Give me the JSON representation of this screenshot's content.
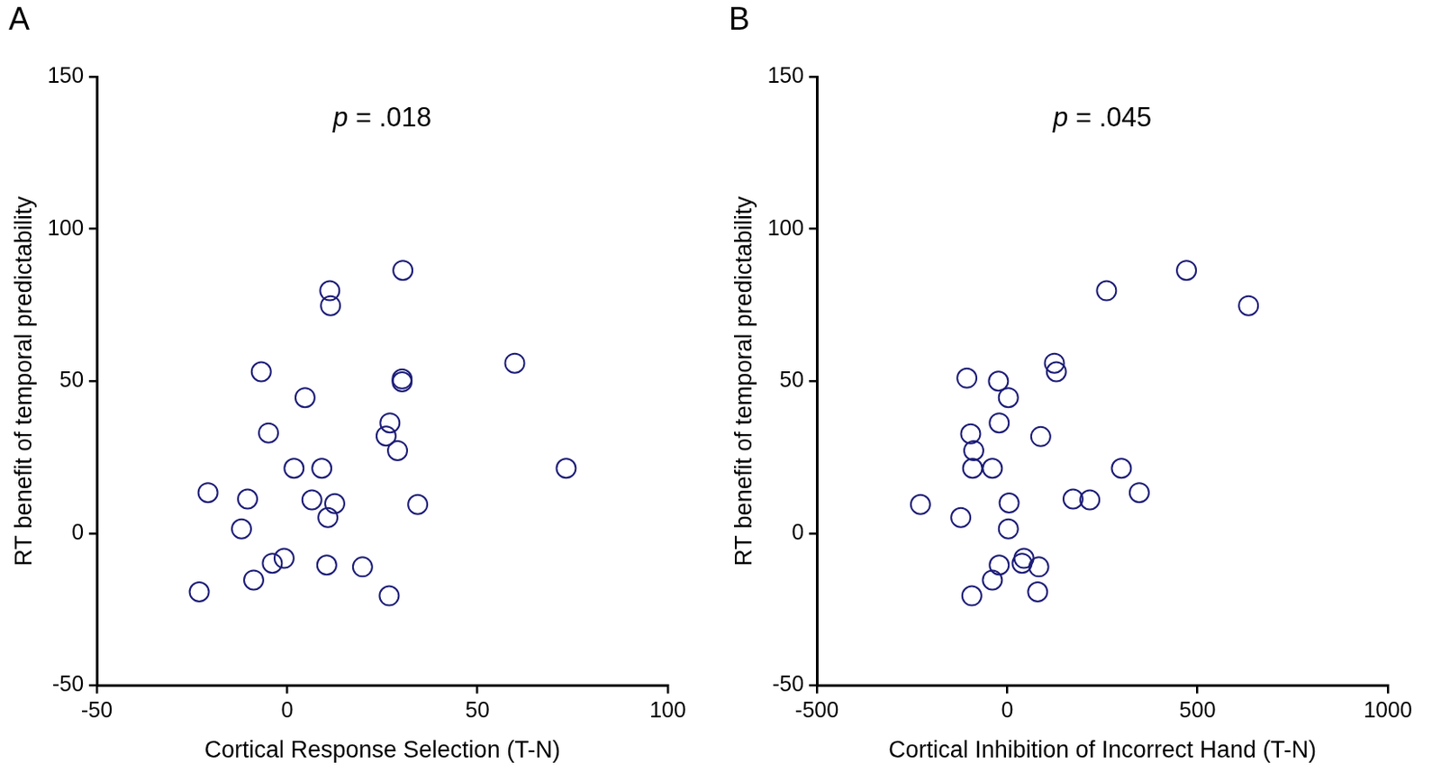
{
  "chart_data": [
    {
      "type": "scatter",
      "title": "A",
      "x_label": "Cortical Response Selection (T-N)",
      "y_label": "RT benefit of temporal predictability",
      "annotations": [
        {
          "text": "p = .018"
        }
      ],
      "x": [
        30.4,
        11.2,
        11.4,
        59.8,
        -6.8,
        30.2,
        30.2,
        4.7,
        27.0,
        -4.9,
        26.0,
        29.0,
        1.8,
        9.1,
        73.3,
        -20.8,
        -10.4,
        6.5,
        12.5,
        34.3,
        10.7,
        -12.0,
        -0.8,
        -3.9,
        10.4,
        19.8,
        -8.8,
        -23.1,
        26.8
      ],
      "values": [
        86.4,
        79.7,
        74.8,
        55.9,
        53.1,
        50.7,
        49.8,
        44.6,
        36.3,
        33.0,
        32.0,
        27.2,
        21.4,
        21.4,
        21.4,
        13.4,
        11.3,
        11.0,
        9.8,
        9.5,
        5.2,
        1.5,
        -8.2,
        -9.8,
        -10.4,
        -11.0,
        -15.3,
        -19.2,
        -20.5
      ],
      "color": "#1c1c78",
      "marker": "open_circle",
      "xlim": [
        -50,
        100
      ],
      "xticks": [
        -50,
        0,
        50,
        100
      ],
      "ylim": [
        -50,
        150
      ],
      "yticks": [
        -50,
        0,
        50,
        100,
        150
      ],
      "grid": false
    },
    {
      "type": "scatter",
      "title": "B",
      "x_label": "Cortical Inhibition of Incorrect Hand (T-N)",
      "y_label": "RT benefit of temporal predictability",
      "annotations": [
        {
          "text": "p = .045"
        }
      ],
      "x": [
        471,
        261,
        634,
        124,
        129,
        -106,
        -23,
        3,
        -21,
        -96,
        88,
        -88,
        -91,
        -39,
        300,
        347,
        173,
        217,
        -228,
        5,
        -122,
        3,
        44,
        39,
        -21,
        83,
        -39,
        80,
        -93
      ],
      "values": [
        86.4,
        79.7,
        74.8,
        55.9,
        53.1,
        51.0,
        50.0,
        44.6,
        36.3,
        32.7,
        31.8,
        27.2,
        21.4,
        21.4,
        21.4,
        13.4,
        11.3,
        11.0,
        9.5,
        10.0,
        5.2,
        1.5,
        -8.2,
        -9.8,
        -10.4,
        -11.0,
        -15.3,
        -19.2,
        -20.5
      ],
      "color": "#1c1c78",
      "marker": "open_circle",
      "xlim": [
        -500,
        1000
      ],
      "xticks": [
        -500,
        0,
        500,
        1000
      ],
      "ylim": [
        -50,
        150
      ],
      "yticks": [
        -50,
        0,
        50,
        100,
        150
      ],
      "grid": false
    }
  ]
}
